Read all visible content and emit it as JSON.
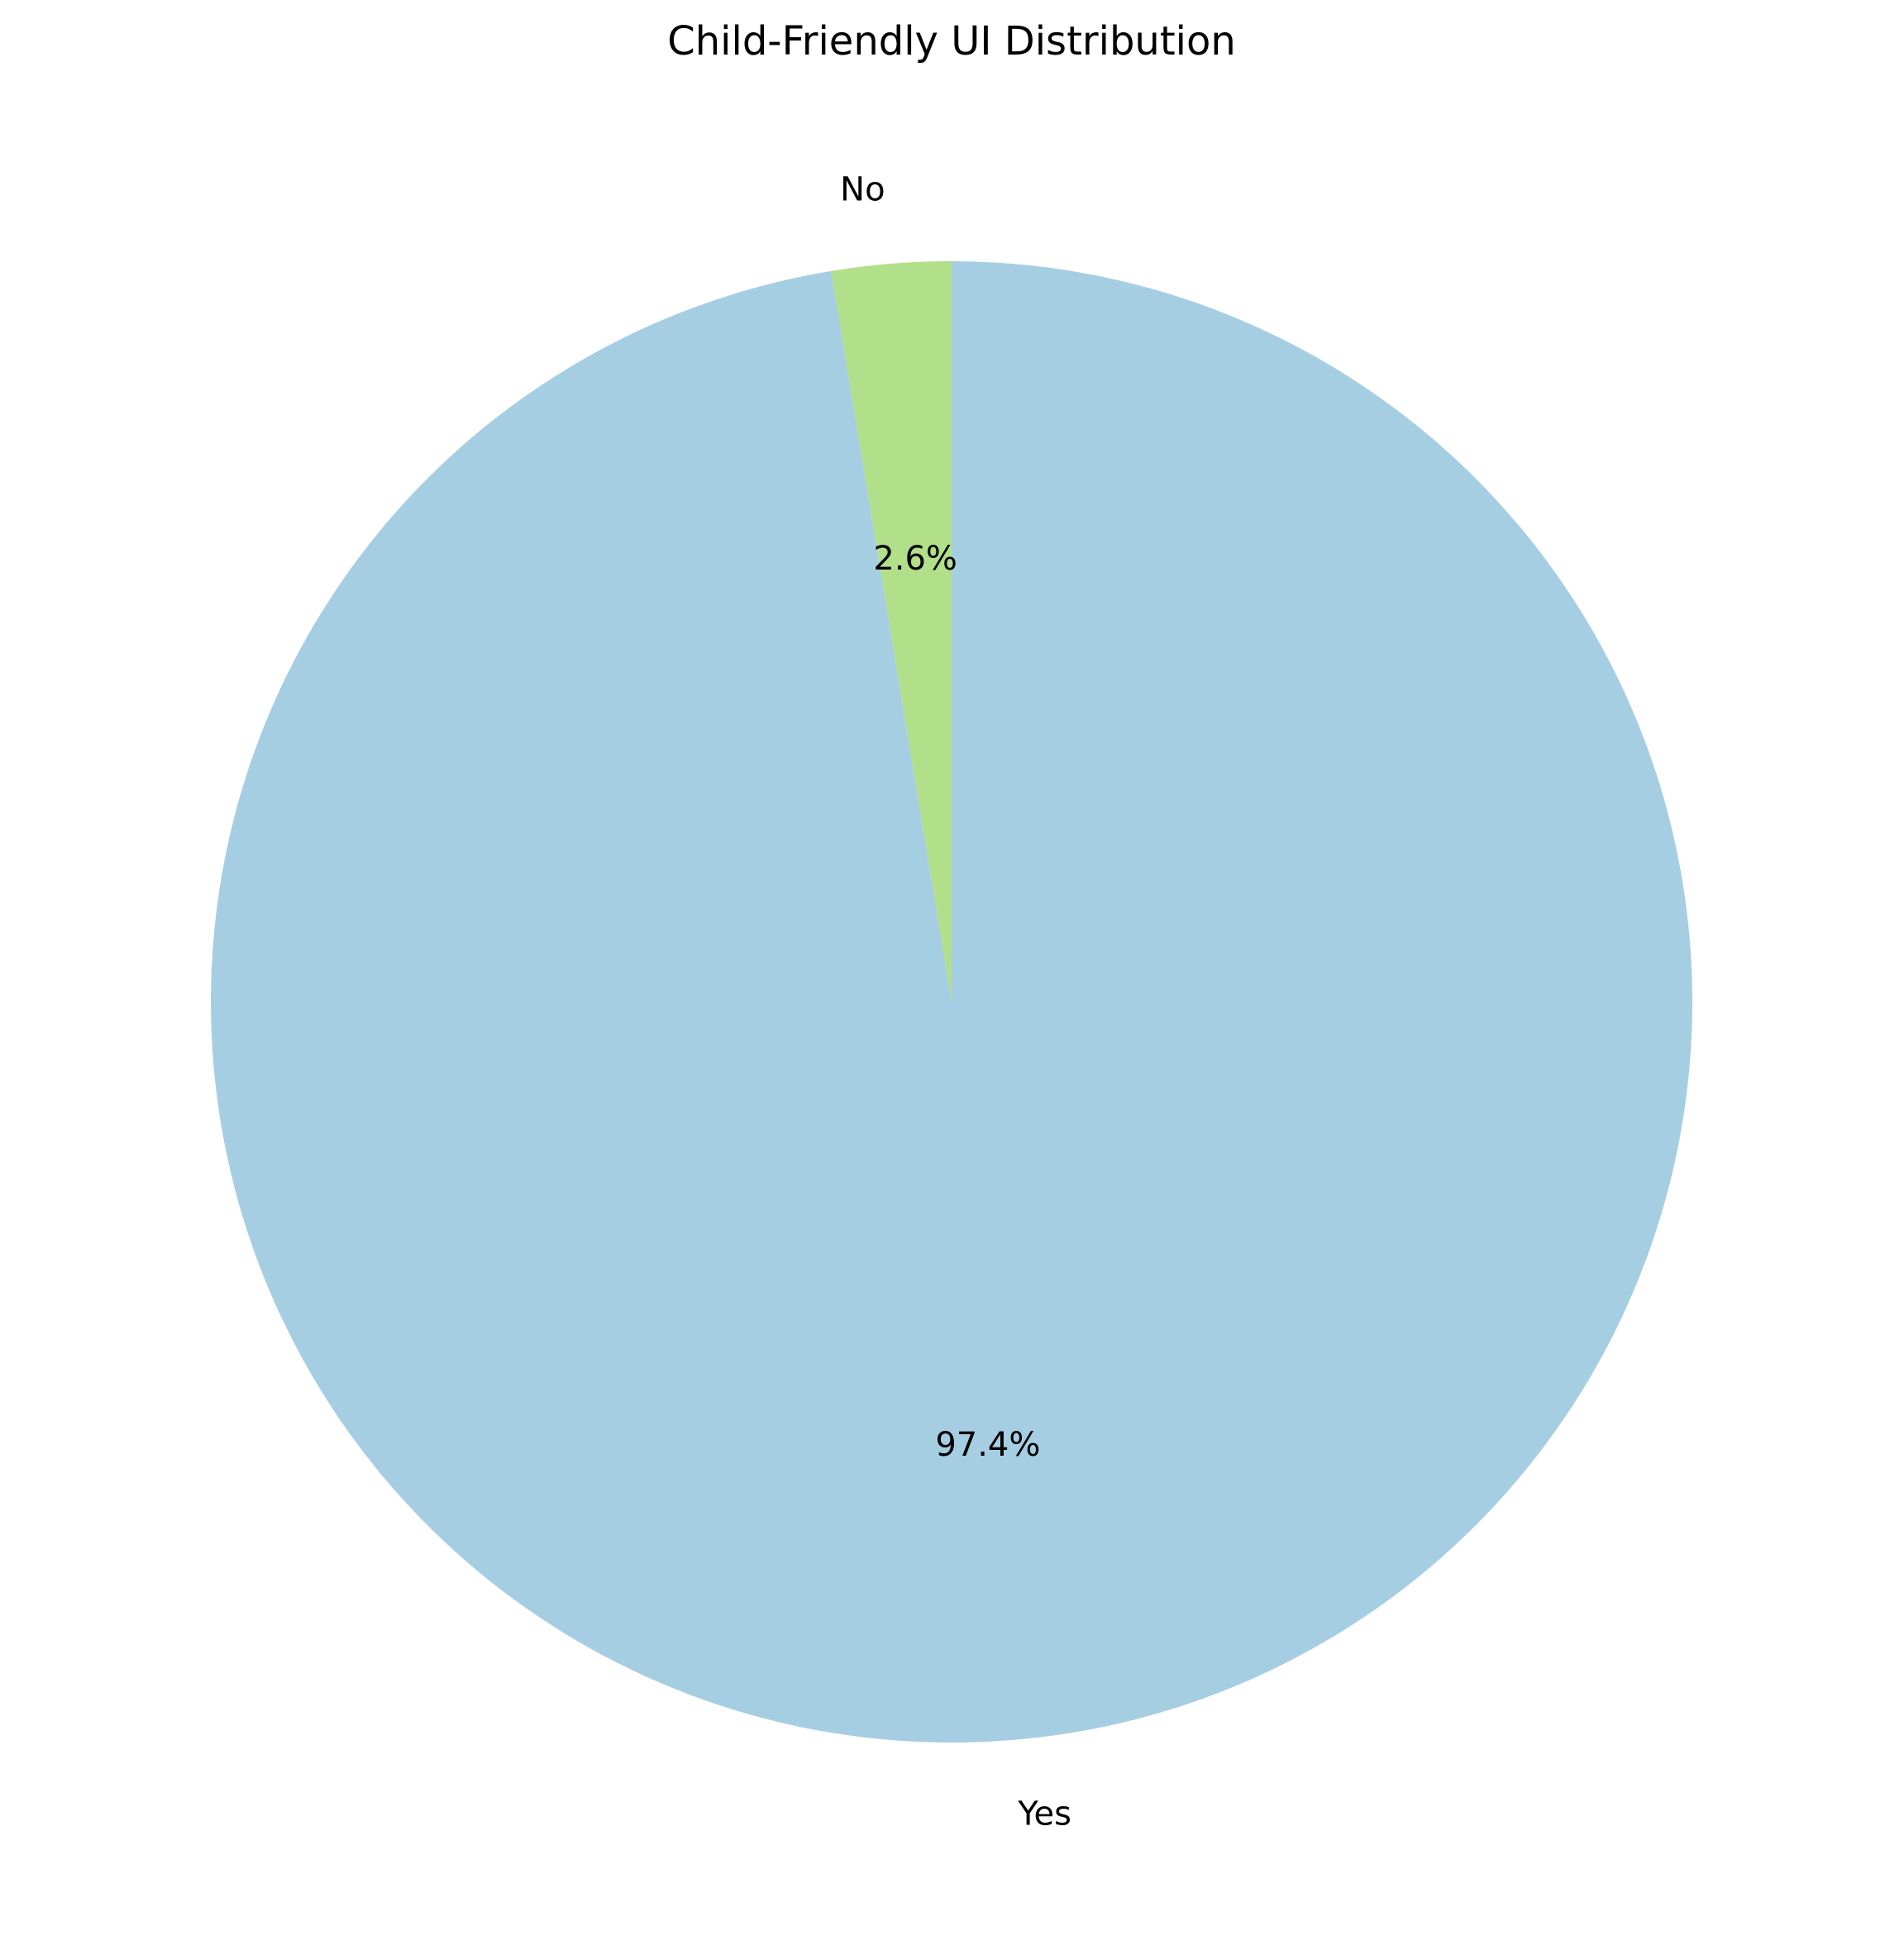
{
  "chart_data": {
    "type": "pie",
    "title": "Child-Friendly UI Distribution",
    "start_angle_deg": 90,
    "direction": "counterclockwise",
    "slices": [
      {
        "label": "No",
        "value": 2.6,
        "pct_label": "2.6%",
        "color": "#b2df8a"
      },
      {
        "label": "Yes",
        "value": 97.4,
        "pct_label": "97.4%",
        "color": "#a6cee3"
      }
    ],
    "legend": "none"
  }
}
